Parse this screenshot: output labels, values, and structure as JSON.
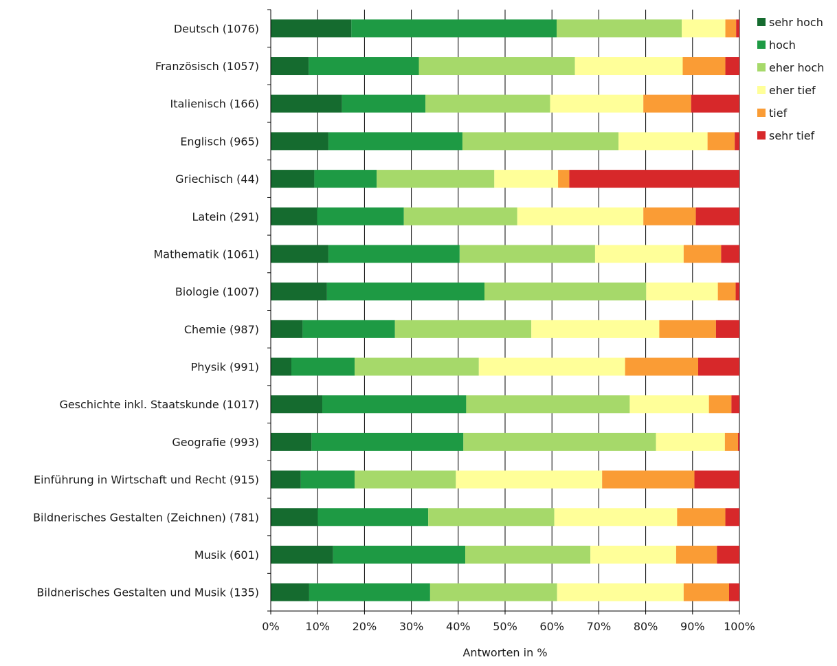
{
  "chart_data": {
    "type": "bar",
    "orientation": "horizontal",
    "stacked": "percent",
    "categories": [
      "Deutsch (1076)",
      "Französisch (1057)",
      "Italienisch (166)",
      "Englisch (965)",
      "Griechisch (44)",
      "Latein (291)",
      "Mathematik (1061)",
      "Biologie (1007)",
      "Chemie (987)",
      "Physik (991)",
      "Geschichte inkl. Staatskunde (1017)",
      "Geografie (993)",
      "Einführung in Wirtschaft und Recht (915)",
      "Bildnerisches Gestalten (Zeichnen) (781)",
      "Musik (601)",
      "Bildnerisches Gestalten und Musik (135)"
    ],
    "series": [
      {
        "name": "sehr hoch",
        "color": "#156b2f",
        "values": [
          17.2,
          8.1,
          15.2,
          12.3,
          9.3,
          9.9,
          12.3,
          12.0,
          6.8,
          4.4,
          11.0,
          8.7,
          6.4,
          10.0,
          13.3,
          8.2
        ]
      },
      {
        "name": "hoch",
        "color": "#1e9a44",
        "values": [
          43.8,
          23.5,
          17.8,
          28.6,
          13.3,
          18.5,
          28.0,
          33.6,
          19.7,
          13.5,
          30.7,
          32.4,
          11.5,
          23.6,
          28.2,
          25.8
        ]
      },
      {
        "name": "eher hoch",
        "color": "#a6d96a",
        "values": [
          26.7,
          33.3,
          26.6,
          33.3,
          25.1,
          24.2,
          28.9,
          34.5,
          29.1,
          26.5,
          34.9,
          41.1,
          21.6,
          26.9,
          26.7,
          27.1
        ]
      },
      {
        "name": "eher tief",
        "color": "#ffff99",
        "values": [
          9.3,
          23.0,
          19.9,
          19.0,
          13.6,
          26.9,
          18.9,
          15.3,
          27.3,
          31.2,
          16.9,
          14.7,
          31.2,
          26.2,
          18.3,
          27.0
        ]
      },
      {
        "name": "tief",
        "color": "#fa9c35",
        "values": [
          2.3,
          9.1,
          10.2,
          5.8,
          2.4,
          11.2,
          8.0,
          3.8,
          12.1,
          15.6,
          4.8,
          2.8,
          19.7,
          10.3,
          8.7,
          9.7
        ]
      },
      {
        "name": "sehr tief",
        "color": "#d7282a",
        "values": [
          0.7,
          3.0,
          10.3,
          1.0,
          36.3,
          9.3,
          3.9,
          0.8,
          5.0,
          8.8,
          1.7,
          0.3,
          9.6,
          3.0,
          4.8,
          2.2
        ]
      }
    ],
    "xlabel": "Antworten in %",
    "ylabel": "",
    "xlim": [
      0,
      100
    ],
    "xticks": [
      "0%",
      "10%",
      "20%",
      "30%",
      "40%",
      "50%",
      "60%",
      "70%",
      "80%",
      "90%",
      "100%"
    ],
    "grid": "vertical",
    "legend_position": "right"
  }
}
